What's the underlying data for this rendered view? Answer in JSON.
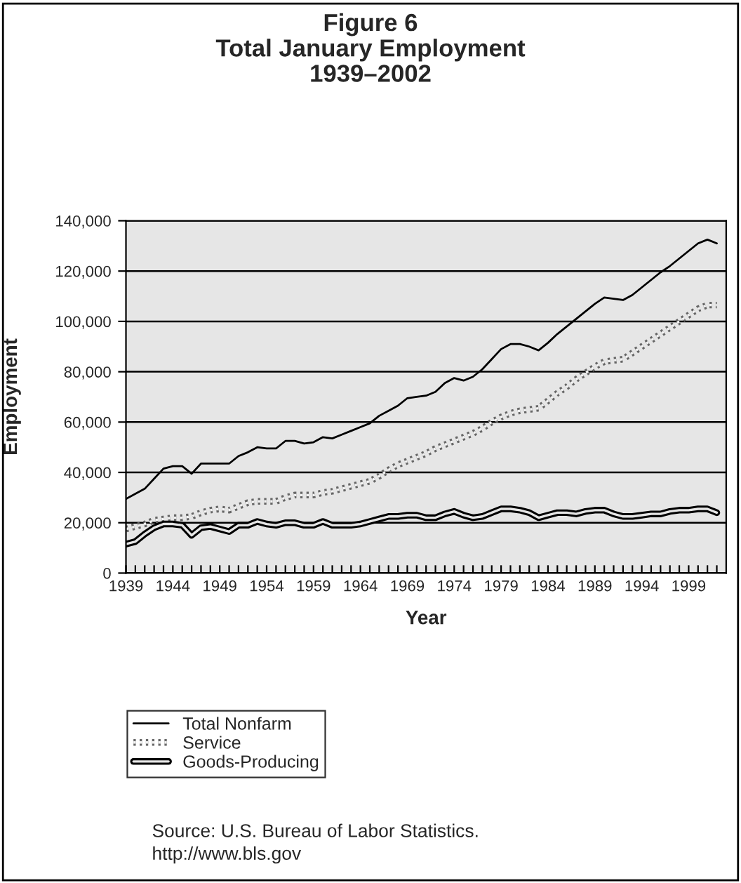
{
  "chart_data": {
    "type": "line",
    "title": "Figure 6\nTotal January Employment\n1939–2002",
    "xlabel": "Year",
    "ylabel": "Employment",
    "x": [
      1939,
      1940,
      1941,
      1942,
      1943,
      1944,
      1945,
      1946,
      1947,
      1948,
      1949,
      1950,
      1951,
      1952,
      1953,
      1954,
      1955,
      1956,
      1957,
      1958,
      1959,
      1960,
      1961,
      1962,
      1963,
      1964,
      1965,
      1966,
      1967,
      1968,
      1969,
      1970,
      1971,
      1972,
      1973,
      1974,
      1975,
      1976,
      1977,
      1978,
      1979,
      1980,
      1981,
      1982,
      1983,
      1984,
      1985,
      1986,
      1987,
      1988,
      1989,
      1990,
      1991,
      1992,
      1993,
      1994,
      1995,
      1996,
      1997,
      1998,
      1999,
      2000,
      2001,
      2002
    ],
    "series": [
      {
        "name": "Total Nonfarm",
        "color": "#000000",
        "line_style": "solid",
        "values": [
          29500,
          31500,
          33500,
          37500,
          41500,
          42500,
          42500,
          39500,
          43500,
          43500,
          43500,
          43500,
          46500,
          48000,
          50000,
          49500,
          49500,
          52500,
          52500,
          51500,
          52000,
          54000,
          53500,
          55000,
          56500,
          58000,
          59500,
          62500,
          64500,
          66500,
          69500,
          70000,
          70500,
          72000,
          75500,
          77500,
          76500,
          78000,
          81000,
          85000,
          89000,
          91000,
          91000,
          90000,
          88500,
          91500,
          95000,
          98000,
          101000,
          104000,
          107000,
          109500,
          109000,
          108500,
          110500,
          113500,
          116500,
          119500,
          122000,
          125000,
          128000,
          131000,
          132500,
          131000
        ]
      },
      {
        "name": "Service",
        "color": "#666666",
        "line_style": "dotted",
        "values": [
          17500,
          18500,
          19500,
          21000,
          21500,
          22000,
          22000,
          22500,
          24000,
          25000,
          25500,
          25000,
          26500,
          28000,
          28500,
          28500,
          28500,
          30000,
          31000,
          31000,
          31000,
          32000,
          32500,
          33500,
          34500,
          35500,
          36500,
          38500,
          41000,
          43000,
          44500,
          46000,
          47500,
          49500,
          51000,
          52500,
          54000,
          55500,
          57500,
          60000,
          62000,
          63500,
          64500,
          65000,
          65500,
          68500,
          71500,
          74000,
          77000,
          79500,
          82000,
          84000,
          84500,
          85000,
          87500,
          90000,
          92500,
          95000,
          97500,
          100000,
          102500,
          105000,
          106500,
          106500
        ]
      },
      {
        "name": "Goods-Producing",
        "color": "#000000",
        "line_style": "solid",
        "values": [
          11500,
          12500,
          15500,
          18000,
          19500,
          19500,
          19000,
          15000,
          18000,
          18500,
          17500,
          16500,
          19000,
          19000,
          20500,
          19500,
          19000,
          20000,
          20000,
          19000,
          19000,
          20500,
          19000,
          19000,
          19000,
          19500,
          20500,
          21500,
          22500,
          22500,
          23000,
          23000,
          22000,
          22000,
          23500,
          24500,
          23000,
          22000,
          22500,
          24000,
          25500,
          25500,
          25000,
          24000,
          22000,
          23000,
          24000,
          24000,
          23500,
          24500,
          25000,
          25000,
          23500,
          22500,
          22500,
          23000,
          23500,
          23500,
          24500,
          25000,
          25000,
          25500,
          25500,
          24000
        ]
      }
    ],
    "xlim": [
      1939,
      2003
    ],
    "xticks": [
      {
        "value": 1939,
        "label": "1939"
      },
      {
        "value": 1940,
        "label": null
      },
      {
        "value": 1941,
        "label": null
      },
      {
        "value": 1942,
        "label": null
      },
      {
        "value": 1943,
        "label": null
      },
      {
        "value": 1944,
        "label": "1944"
      },
      {
        "value": 1945,
        "label": null
      },
      {
        "value": 1946,
        "label": null
      },
      {
        "value": 1947,
        "label": null
      },
      {
        "value": 1948,
        "label": null
      },
      {
        "value": 1949,
        "label": "1949"
      },
      {
        "value": 1950,
        "label": null
      },
      {
        "value": 1951,
        "label": null
      },
      {
        "value": 1952,
        "label": null
      },
      {
        "value": 1953,
        "label": null
      },
      {
        "value": 1954,
        "label": "1954"
      },
      {
        "value": 1955,
        "label": null
      },
      {
        "value": 1956,
        "label": null
      },
      {
        "value": 1957,
        "label": null
      },
      {
        "value": 1958,
        "label": null
      },
      {
        "value": 1959,
        "label": "1959"
      },
      {
        "value": 1960,
        "label": null
      },
      {
        "value": 1961,
        "label": null
      },
      {
        "value": 1962,
        "label": null
      },
      {
        "value": 1963,
        "label": null
      },
      {
        "value": 1964,
        "label": "1964"
      },
      {
        "value": 1965,
        "label": null
      },
      {
        "value": 1966,
        "label": null
      },
      {
        "value": 1967,
        "label": null
      },
      {
        "value": 1968,
        "label": null
      },
      {
        "value": 1969,
        "label": "1969"
      },
      {
        "value": 1970,
        "label": null
      },
      {
        "value": 1971,
        "label": null
      },
      {
        "value": 1972,
        "label": null
      },
      {
        "value": 1973,
        "label": null
      },
      {
        "value": 1974,
        "label": "1974"
      },
      {
        "value": 1975,
        "label": null
      },
      {
        "value": 1976,
        "label": null
      },
      {
        "value": 1977,
        "label": null
      },
      {
        "value": 1978,
        "label": null
      },
      {
        "value": 1979,
        "label": "1979"
      },
      {
        "value": 1980,
        "label": null
      },
      {
        "value": 1981,
        "label": null
      },
      {
        "value": 1982,
        "label": null
      },
      {
        "value": 1983,
        "label": null
      },
      {
        "value": 1984,
        "label": "1984"
      },
      {
        "value": 1985,
        "label": null
      },
      {
        "value": 1986,
        "label": null
      },
      {
        "value": 1987,
        "label": null
      },
      {
        "value": 1988,
        "label": null
      },
      {
        "value": 1989,
        "label": "1989"
      },
      {
        "value": 1990,
        "label": null
      },
      {
        "value": 1991,
        "label": null
      },
      {
        "value": 1992,
        "label": null
      },
      {
        "value": 1993,
        "label": null
      },
      {
        "value": 1994,
        "label": "1994"
      },
      {
        "value": 1995,
        "label": null
      },
      {
        "value": 1996,
        "label": null
      },
      {
        "value": 1997,
        "label": null
      },
      {
        "value": 1998,
        "label": null
      },
      {
        "value": 1999,
        "label": "1999"
      },
      {
        "value": 2000,
        "label": null
      },
      {
        "value": 2001,
        "label": null
      },
      {
        "value": 2002,
        "label": null
      }
    ],
    "ylim": [
      0,
      140000
    ],
    "yticks": [
      {
        "value": 0,
        "label": "0"
      },
      {
        "value": 20000,
        "label": "20,000"
      },
      {
        "value": 40000,
        "label": "40,000"
      },
      {
        "value": 60000,
        "label": "60,000"
      },
      {
        "value": 80000,
        "label": "80,000"
      },
      {
        "value": 100000,
        "label": "100,000"
      },
      {
        "value": 120000,
        "label": "120,000"
      },
      {
        "value": 140000,
        "label": "140,000"
      }
    ],
    "grid": "y",
    "legend": "bottom",
    "marker": "none",
    "annotations": [
      "Source: U.S. Bureau of Labor Statistics.\nhttp://www.bls.gov"
    ]
  }
}
